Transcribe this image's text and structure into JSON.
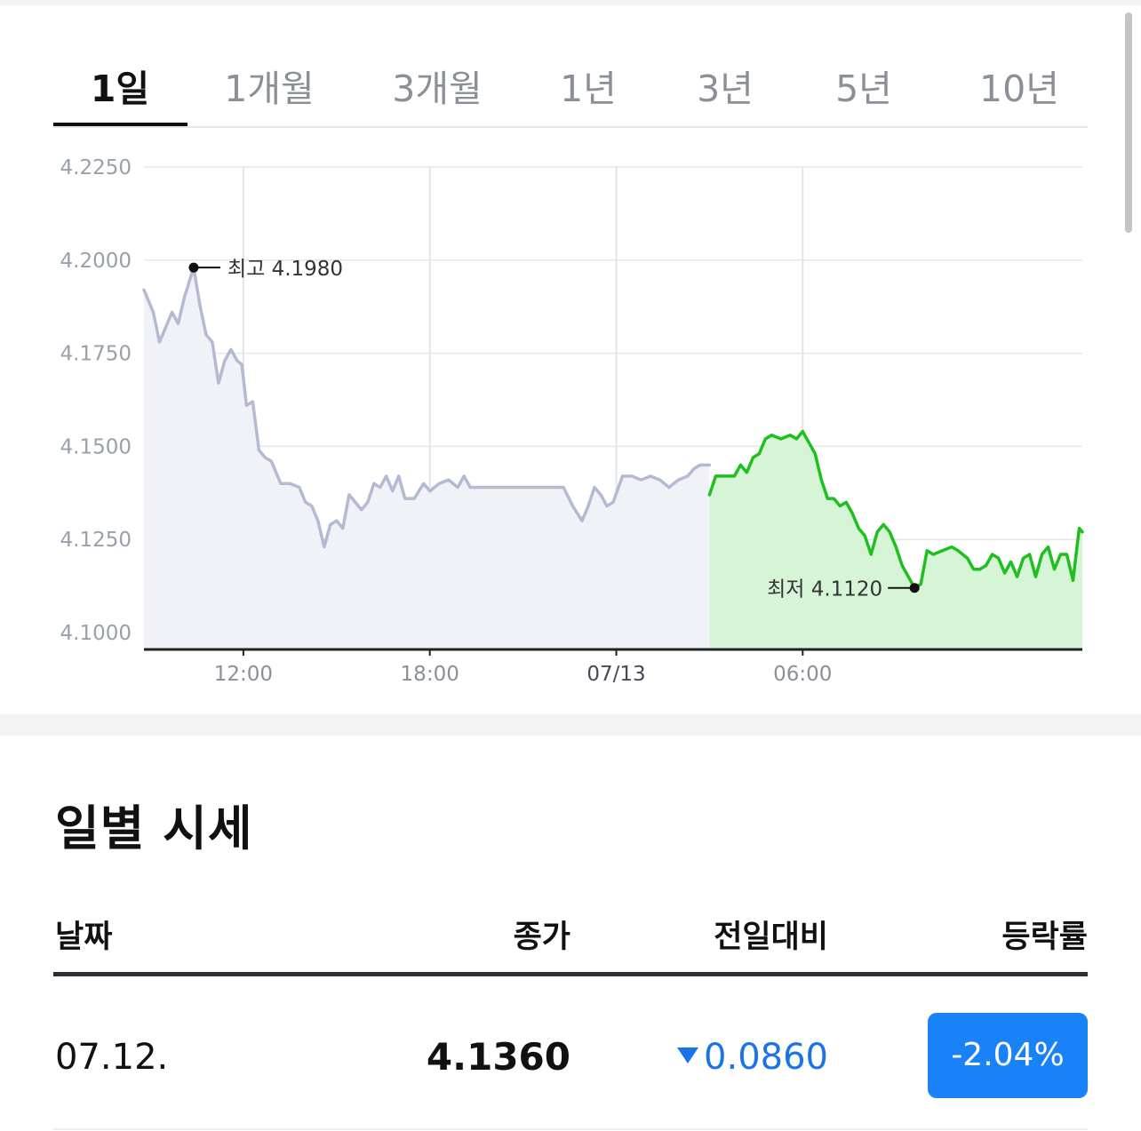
{
  "tabs": [
    {
      "label": "1일",
      "active": true
    },
    {
      "label": "1개월"
    },
    {
      "label": "3개월"
    },
    {
      "label": "1년"
    },
    {
      "label": "3년"
    },
    {
      "label": "5년"
    },
    {
      "label": "10년"
    }
  ],
  "chart_data": {
    "type": "area",
    "y_ticks": [
      "4.2250",
      "4.2000",
      "4.1750",
      "4.1500",
      "4.1250",
      "4.1000"
    ],
    "ylim": [
      4.1,
      4.225
    ],
    "x_ticks": [
      "12:00",
      "18:00",
      "07/13",
      "06:00"
    ],
    "grid": true,
    "high": {
      "label": "최고 4.1980",
      "value": 4.198
    },
    "low": {
      "label": "최저 4.1120",
      "value": 4.112
    },
    "series": [
      {
        "day": "07/12",
        "color": "#b3bad2",
        "fill": "#f1f2f7",
        "points": [
          [
            8.8,
            4.192
          ],
          [
            9.0,
            4.188
          ],
          [
            9.1,
            4.186
          ],
          [
            9.3,
            4.178
          ],
          [
            9.5,
            4.182
          ],
          [
            9.7,
            4.186
          ],
          [
            9.9,
            4.183
          ],
          [
            10.1,
            4.19
          ],
          [
            10.4,
            4.198
          ],
          [
            10.6,
            4.188
          ],
          [
            10.8,
            4.18
          ],
          [
            11.0,
            4.178
          ],
          [
            11.2,
            4.167
          ],
          [
            11.4,
            4.173
          ],
          [
            11.6,
            4.176
          ],
          [
            11.8,
            4.173
          ],
          [
            11.95,
            4.172
          ],
          [
            12.1,
            4.161
          ],
          [
            12.3,
            4.162
          ],
          [
            12.5,
            4.149
          ],
          [
            12.7,
            4.147
          ],
          [
            12.9,
            4.146
          ],
          [
            13.2,
            4.14
          ],
          [
            13.5,
            4.14
          ],
          [
            13.8,
            4.139
          ],
          [
            14.0,
            4.135
          ],
          [
            14.2,
            4.134
          ],
          [
            14.4,
            4.13
          ],
          [
            14.6,
            4.123
          ],
          [
            14.8,
            4.129
          ],
          [
            15.0,
            4.13
          ],
          [
            15.2,
            4.128
          ],
          [
            15.4,
            4.137
          ],
          [
            15.6,
            4.135
          ],
          [
            15.8,
            4.133
          ],
          [
            16.0,
            4.135
          ],
          [
            16.2,
            4.14
          ],
          [
            16.4,
            4.139
          ],
          [
            16.6,
            4.142
          ],
          [
            16.8,
            4.138
          ],
          [
            17.0,
            4.142
          ],
          [
            17.2,
            4.136
          ],
          [
            17.5,
            4.136
          ],
          [
            17.8,
            4.14
          ],
          [
            18.0,
            4.138
          ],
          [
            18.3,
            4.14
          ],
          [
            18.6,
            4.141
          ],
          [
            18.9,
            4.139
          ],
          [
            19.1,
            4.142
          ],
          [
            19.3,
            4.139
          ],
          [
            20.0,
            4.139
          ],
          [
            21.0,
            4.139
          ],
          [
            22.0,
            4.139
          ],
          [
            22.3,
            4.139
          ],
          [
            22.6,
            4.134
          ],
          [
            22.9,
            4.13
          ],
          [
            23.1,
            4.134
          ],
          [
            23.3,
            4.139
          ],
          [
            23.5,
            4.137
          ],
          [
            23.7,
            4.134
          ],
          [
            23.9,
            4.135
          ],
          [
            24.2,
            4.142
          ],
          [
            24.5,
            4.142
          ],
          [
            24.8,
            4.141
          ],
          [
            25.1,
            4.142
          ],
          [
            25.4,
            4.141
          ],
          [
            25.7,
            4.139
          ],
          [
            26.0,
            4.141
          ],
          [
            26.3,
            4.142
          ],
          [
            26.5,
            4.144
          ],
          [
            26.7,
            4.145
          ],
          [
            27.0,
            4.145
          ]
        ]
      },
      {
        "day": "07/13",
        "color": "#1fbf1f",
        "fill": "#d6f5d6",
        "points": [
          [
            27.0,
            4.137
          ],
          [
            27.2,
            4.142
          ],
          [
            27.5,
            4.142
          ],
          [
            27.8,
            4.142
          ],
          [
            28.0,
            4.145
          ],
          [
            28.2,
            4.143
          ],
          [
            28.4,
            4.147
          ],
          [
            28.6,
            4.148
          ],
          [
            28.8,
            4.152
          ],
          [
            29.0,
            4.153
          ],
          [
            29.3,
            4.152
          ],
          [
            29.6,
            4.153
          ],
          [
            29.8,
            4.152
          ],
          [
            30.0,
            4.154
          ],
          [
            30.2,
            4.151
          ],
          [
            30.4,
            4.148
          ],
          [
            30.6,
            4.141
          ],
          [
            30.8,
            4.136
          ],
          [
            31.0,
            4.136
          ],
          [
            31.2,
            4.134
          ],
          [
            31.4,
            4.135
          ],
          [
            31.6,
            4.132
          ],
          [
            31.8,
            4.128
          ],
          [
            32.0,
            4.126
          ],
          [
            32.2,
            4.121
          ],
          [
            32.4,
            4.127
          ],
          [
            32.6,
            4.129
          ],
          [
            32.8,
            4.127
          ],
          [
            33.0,
            4.123
          ],
          [
            33.2,
            4.118
          ],
          [
            33.4,
            4.115
          ],
          [
            33.6,
            4.112
          ],
          [
            33.8,
            4.113
          ],
          [
            34.0,
            4.122
          ],
          [
            34.2,
            4.121
          ],
          [
            34.5,
            4.122
          ],
          [
            34.8,
            4.123
          ],
          [
            35.0,
            4.122
          ],
          [
            35.3,
            4.12
          ],
          [
            35.5,
            4.117
          ],
          [
            35.7,
            4.117
          ],
          [
            35.9,
            4.118
          ],
          [
            36.1,
            4.121
          ],
          [
            36.3,
            4.12
          ],
          [
            36.5,
            4.116
          ],
          [
            36.7,
            4.119
          ],
          [
            36.9,
            4.115
          ],
          [
            37.1,
            4.12
          ],
          [
            37.3,
            4.121
          ],
          [
            37.5,
            4.115
          ],
          [
            37.7,
            4.121
          ],
          [
            37.9,
            4.123
          ],
          [
            38.1,
            4.117
          ],
          [
            38.3,
            4.121
          ],
          [
            38.5,
            4.121
          ],
          [
            38.7,
            4.114
          ],
          [
            38.9,
            4.128
          ],
          [
            39.0,
            4.127
          ]
        ]
      }
    ]
  },
  "section": {
    "title": "일별 시세"
  },
  "table": {
    "headers": {
      "date": "날짜",
      "close": "종가",
      "change": "전일대비",
      "rate": "등락률"
    },
    "rows": [
      {
        "date": "07.12.",
        "close": "4.1360",
        "change": "0.0860",
        "direction": "down",
        "rate": "-2.04%"
      }
    ]
  }
}
